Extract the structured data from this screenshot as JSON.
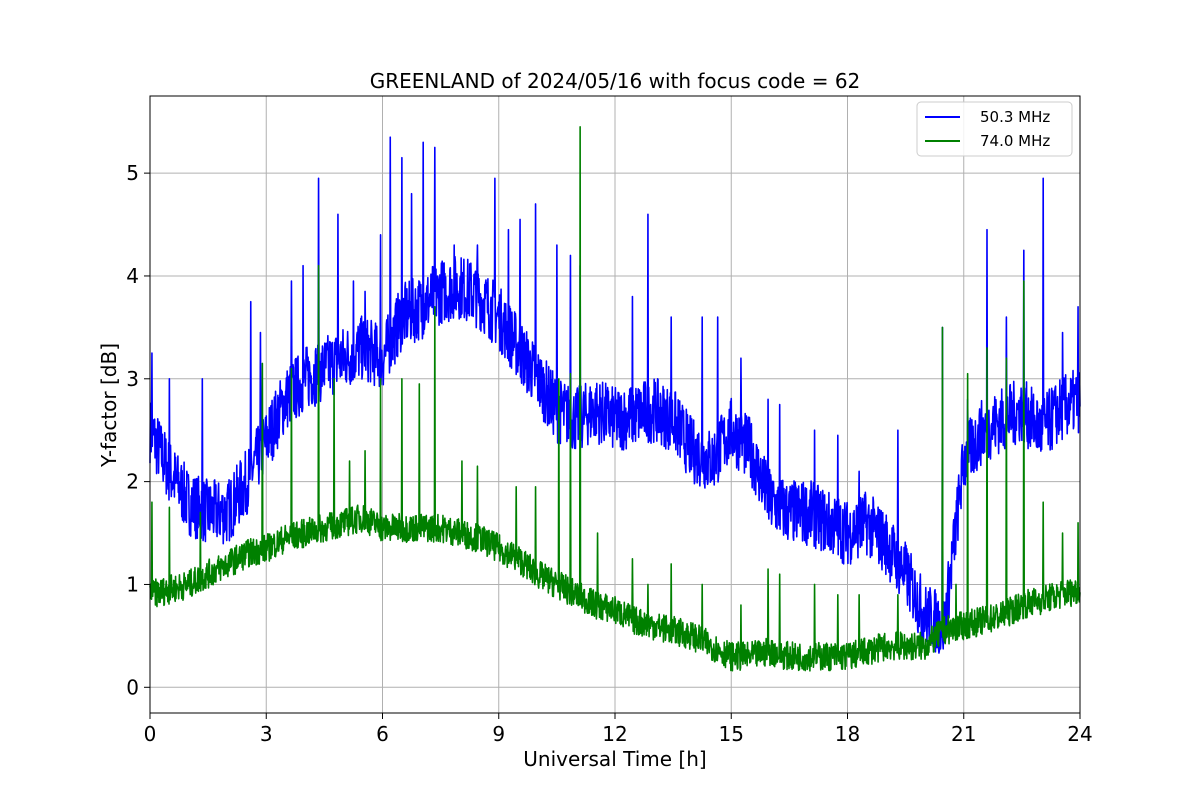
{
  "chart_data": {
    "type": "line",
    "title": "GREENLAND of 2024/05/16 with focus code = 62",
    "xlabel": "Universal Time [h]",
    "ylabel": "Y-factor [dB]",
    "xlim": [
      0,
      24
    ],
    "ylim": [
      -0.25,
      5.75
    ],
    "xticks": [
      0,
      3,
      6,
      9,
      12,
      15,
      18,
      21,
      24
    ],
    "yticks": [
      0,
      1,
      2,
      3,
      4,
      5
    ],
    "grid": true,
    "legend_position": "top-right",
    "series": [
      {
        "name": "50.3 MHz",
        "color": "#0000ff",
        "x": [
          0,
          0.5,
          1,
          1.5,
          2,
          2.5,
          3,
          3.5,
          4,
          4.5,
          5,
          5.5,
          6,
          6.5,
          7,
          7.5,
          8,
          8.5,
          9,
          9.5,
          10,
          10.5,
          11,
          11.5,
          12,
          12.5,
          13,
          13.5,
          14,
          14.5,
          15,
          15.5,
          16,
          16.5,
          17,
          17.5,
          18,
          18.5,
          19,
          19.5,
          20,
          20.5,
          21,
          21.5,
          22,
          22.5,
          23,
          23.5,
          24
        ],
        "y": [
          2.5,
          2.1,
          1.8,
          1.7,
          1.7,
          2.0,
          2.4,
          2.8,
          3.0,
          3.1,
          3.2,
          3.3,
          3.2,
          3.6,
          3.7,
          3.85,
          3.9,
          3.8,
          3.6,
          3.3,
          3.0,
          2.7,
          2.6,
          2.7,
          2.6,
          2.65,
          2.7,
          2.6,
          2.3,
          2.2,
          2.5,
          2.3,
          1.8,
          1.7,
          1.7,
          1.6,
          1.5,
          1.6,
          1.4,
          1.1,
          0.7,
          0.6,
          2.2,
          2.5,
          2.6,
          2.7,
          2.5,
          2.7,
          2.8
        ],
        "spikes": [
          [
            0.05,
            3.25
          ],
          [
            0.5,
            3.0
          ],
          [
            1.35,
            3.0
          ],
          [
            2.6,
            3.75
          ],
          [
            2.85,
            3.45
          ],
          [
            3.65,
            3.95
          ],
          [
            3.95,
            4.1
          ],
          [
            4.35,
            4.95
          ],
          [
            4.85,
            4.6
          ],
          [
            5.25,
            3.95
          ],
          [
            5.55,
            3.85
          ],
          [
            5.95,
            4.4
          ],
          [
            6.2,
            5.35
          ],
          [
            6.5,
            5.15
          ],
          [
            6.75,
            4.8
          ],
          [
            7.05,
            5.3
          ],
          [
            7.35,
            5.25
          ],
          [
            7.85,
            4.3
          ],
          [
            8.45,
            4.3
          ],
          [
            8.9,
            4.95
          ],
          [
            9.25,
            4.45
          ],
          [
            9.55,
            4.55
          ],
          [
            9.95,
            4.7
          ],
          [
            10.5,
            4.3
          ],
          [
            10.85,
            4.2
          ],
          [
            11.1,
            4.1
          ],
          [
            12.45,
            3.8
          ],
          [
            12.85,
            4.6
          ],
          [
            13.45,
            3.6
          ],
          [
            14.25,
            3.6
          ],
          [
            14.65,
            3.6
          ],
          [
            15.25,
            3.2
          ],
          [
            15.95,
            2.8
          ],
          [
            16.25,
            2.75
          ],
          [
            17.15,
            2.5
          ],
          [
            17.75,
            2.45
          ],
          [
            18.3,
            2.1
          ],
          [
            19.3,
            2.5
          ],
          [
            20.45,
            3.5
          ],
          [
            21.1,
            2.8
          ],
          [
            21.6,
            4.45
          ],
          [
            22.1,
            3.6
          ],
          [
            22.55,
            4.25
          ],
          [
            23.05,
            4.95
          ],
          [
            23.55,
            3.45
          ],
          [
            23.95,
            3.7
          ]
        ]
      },
      {
        "name": "74.0 MHz",
        "color": "#008000",
        "x": [
          0,
          0.5,
          1,
          1.5,
          2,
          2.5,
          3,
          3.5,
          4,
          4.5,
          5,
          5.5,
          6,
          6.5,
          7,
          7.5,
          8,
          8.5,
          9,
          9.5,
          10,
          10.5,
          11,
          11.5,
          12,
          12.5,
          13,
          13.5,
          14,
          14.5,
          15,
          15.5,
          16,
          16.5,
          17,
          17.5,
          18,
          18.5,
          19,
          19.5,
          20,
          20.5,
          21,
          21.5,
          22,
          22.5,
          23,
          23.5,
          24
        ],
        "y": [
          0.9,
          0.95,
          1.0,
          1.1,
          1.2,
          1.3,
          1.35,
          1.45,
          1.5,
          1.55,
          1.6,
          1.65,
          1.55,
          1.55,
          1.55,
          1.55,
          1.5,
          1.45,
          1.35,
          1.25,
          1.1,
          1.0,
          0.9,
          0.8,
          0.75,
          0.65,
          0.6,
          0.55,
          0.5,
          0.4,
          0.3,
          0.3,
          0.35,
          0.3,
          0.3,
          0.3,
          0.3,
          0.35,
          0.4,
          0.4,
          0.4,
          0.55,
          0.6,
          0.65,
          0.7,
          0.8,
          0.85,
          0.9,
          0.95
        ],
        "spikes": [
          [
            0.05,
            1.8
          ],
          [
            0.5,
            1.75
          ],
          [
            1.3,
            1.7
          ],
          [
            2.9,
            3.15
          ],
          [
            3.65,
            3.1
          ],
          [
            4.35,
            4.1
          ],
          [
            4.75,
            3.0
          ],
          [
            5.15,
            2.2
          ],
          [
            5.55,
            2.3
          ],
          [
            5.95,
            3.0
          ],
          [
            6.5,
            3.0
          ],
          [
            6.95,
            2.95
          ],
          [
            7.35,
            3.7
          ],
          [
            8.05,
            2.2
          ],
          [
            8.45,
            2.15
          ],
          [
            9.45,
            1.95
          ],
          [
            9.95,
            1.95
          ],
          [
            10.55,
            3.0
          ],
          [
            10.85,
            3.05
          ],
          [
            11.1,
            5.45
          ],
          [
            11.55,
            1.5
          ],
          [
            12.45,
            1.25
          ],
          [
            12.85,
            1.0
          ],
          [
            13.45,
            1.2
          ],
          [
            14.25,
            1.0
          ],
          [
            15.25,
            0.8
          ],
          [
            15.95,
            1.15
          ],
          [
            16.25,
            1.1
          ],
          [
            17.15,
            1.0
          ],
          [
            17.75,
            0.9
          ],
          [
            18.3,
            0.9
          ],
          [
            19.3,
            0.9
          ],
          [
            20.45,
            3.5
          ],
          [
            20.8,
            1.0
          ],
          [
            21.1,
            3.05
          ],
          [
            21.6,
            3.3
          ],
          [
            22.1,
            3.2
          ],
          [
            22.55,
            3.95
          ],
          [
            23.05,
            1.8
          ],
          [
            23.55,
            1.5
          ],
          [
            23.95,
            1.6
          ]
        ]
      }
    ]
  }
}
